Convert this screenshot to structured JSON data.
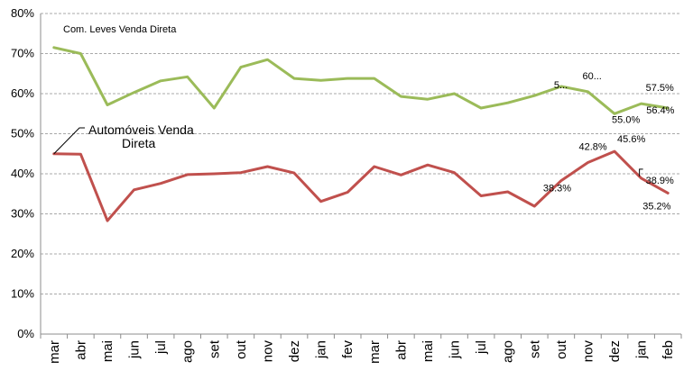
{
  "chart_data": {
    "type": "line",
    "categories": [
      "mar",
      "abr",
      "mai",
      "jun",
      "jul",
      "ago",
      "set",
      "out",
      "nov",
      "dez",
      "jan",
      "fev",
      "mar",
      "abr",
      "mai",
      "jun",
      "jul",
      "ago",
      "set",
      "out",
      "nov",
      "dez",
      "jan",
      "feb"
    ],
    "ylim": [
      0,
      80
    ],
    "yticks": [
      "0%",
      "10%",
      "20%",
      "30%",
      "40%",
      "50%",
      "60%",
      "70%",
      "80%"
    ],
    "grid": true,
    "series": [
      {
        "name": "Com. Leves Venda Direta",
        "color": "#9BBB59",
        "values": [
          71.5,
          70.0,
          57.2,
          60.3,
          63.2,
          64.2,
          56.4,
          66.6,
          68.5,
          63.8,
          63.3,
          63.8,
          63.8,
          59.3,
          58.6,
          60.0,
          56.4,
          57.7,
          59.5,
          61.8,
          60.5,
          55.0,
          57.5,
          56.4
        ]
      },
      {
        "name": "Automóveis Venda Direta",
        "name_lines": [
          "Automóveis Venda",
          "Direta"
        ],
        "color": "#C0504D",
        "values": [
          45.0,
          44.9,
          28.3,
          36.0,
          37.6,
          39.8,
          40.0,
          40.3,
          41.8,
          40.2,
          33.1,
          35.4,
          41.8,
          39.7,
          42.2,
          40.3,
          34.5,
          35.5,
          31.9,
          38.3,
          42.8,
          45.6,
          38.9,
          35.2
        ]
      }
    ],
    "data_labels": [
      {
        "series": 0,
        "index": 19,
        "text": "5..."
      },
      {
        "series": 0,
        "index": 20,
        "text": "60..."
      },
      {
        "series": 0,
        "index": 21,
        "text": "55.0%"
      },
      {
        "series": 0,
        "index": 22,
        "text": "57.5%"
      },
      {
        "series": 0,
        "index": 23,
        "text": "56.4%"
      },
      {
        "series": 1,
        "index": 19,
        "text": "38.3%"
      },
      {
        "series": 1,
        "index": 20,
        "text": "42.8%"
      },
      {
        "series": 1,
        "index": 21,
        "text": "45.6%"
      },
      {
        "series": 1,
        "index": 22,
        "text": "38.9%"
      },
      {
        "series": 1,
        "index": 23,
        "text": "35.2%"
      }
    ]
  }
}
